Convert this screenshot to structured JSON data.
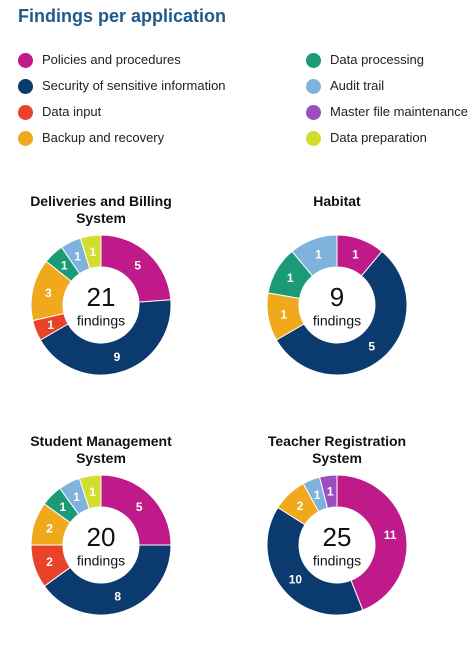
{
  "title": "Findings per application",
  "legend": [
    {
      "name": "Policies and procedures",
      "color": "#c0198a"
    },
    {
      "name": "Security of sensitive information",
      "color": "#0b3a6e"
    },
    {
      "name": "Data input",
      "color": "#e8432a"
    },
    {
      "name": "Backup and recovery",
      "color": "#f0a81c"
    },
    {
      "name": "Data processing",
      "color": "#1a9a77"
    },
    {
      "name": "Audit trail",
      "color": "#7fb2dc"
    },
    {
      "name": "Master file maintenance",
      "color": "#9a4fc1"
    },
    {
      "name": "Data preparation",
      "color": "#d3dd2f"
    }
  ],
  "chart_data": [
    {
      "type": "donut",
      "title": "Deliveries and Billing System",
      "total": 21,
      "total_label": "findings",
      "categories": [
        "Policies and procedures",
        "Security of sensitive information",
        "Data input",
        "Backup and recovery",
        "Data processing",
        "Audit trail",
        "Data preparation"
      ],
      "values": [
        5,
        9,
        1,
        3,
        1,
        1,
        1
      ]
    },
    {
      "type": "donut",
      "title": "Habitat",
      "total": 9,
      "total_label": "findings",
      "categories": [
        "Policies and procedures",
        "Security of sensitive information",
        "Backup and recovery",
        "Data processing",
        "Audit trail"
      ],
      "values": [
        1,
        5,
        1,
        1,
        1
      ]
    },
    {
      "type": "donut",
      "title": "Student Management System",
      "total": 20,
      "total_label": "findings",
      "categories": [
        "Policies and procedures",
        "Security of sensitive information",
        "Data input",
        "Backup and recovery",
        "Data processing",
        "Audit trail",
        "Data preparation"
      ],
      "values": [
        5,
        8,
        2,
        2,
        1,
        1,
        1
      ]
    },
    {
      "type": "donut",
      "title": "Teacher Registration System",
      "total": 25,
      "total_label": "findings",
      "categories": [
        "Policies and procedures",
        "Security of sensitive information",
        "Backup and recovery",
        "Audit trail",
        "Master file maintenance"
      ],
      "values": [
        11,
        10,
        2,
        1,
        1
      ]
    }
  ]
}
